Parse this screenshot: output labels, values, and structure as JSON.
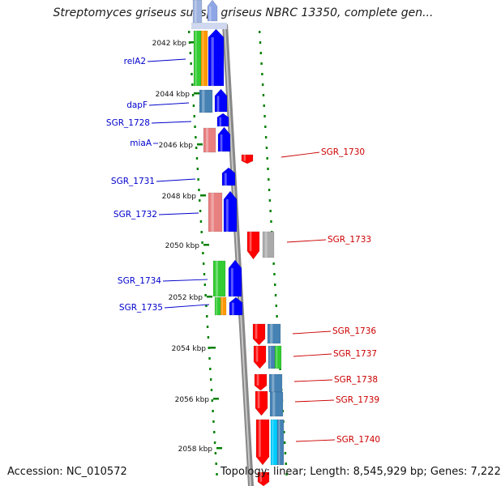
{
  "title": "Streptomyces griseus subsp. griseus NBRC 13350, complete gen...",
  "footer": {
    "accession": "Accession: NC_010572",
    "summary": "Topology: linear; Length: 8,545,929 bp; Genes: 7,222"
  },
  "colors": {
    "left_label": "#0000cc",
    "right_label": "#cc0000",
    "blue_gene": "#0000ff",
    "red_gene": "#ff0000",
    "pink_gene": "#e88080",
    "green_gene": "#33cc33",
    "orange_gene": "#ff9900",
    "steel_gene": "#4682b4",
    "gray_gene": "#aaaaaa",
    "cyan_gene": "#00ccff",
    "dots": "#008000",
    "axis": "#888888"
  },
  "kbp_ticks": [
    "2042 kbp",
    "2044 kbp",
    "2046 kbp",
    "2048 kbp",
    "2050 kbp",
    "2052 kbp",
    "2054 kbp",
    "2056 kbp",
    "2058 kbp"
  ],
  "left_genes": [
    "relA2",
    "dapF",
    "SGR_1728",
    "miaA",
    "SGR_1731",
    "SGR_1732",
    "SGR_1734",
    "SGR_1735"
  ],
  "right_genes": [
    "SGR_1730",
    "SGR_1733",
    "SGR_1736",
    "SGR_1737",
    "SGR_1738",
    "SGR_1739",
    "SGR_1740"
  ]
}
